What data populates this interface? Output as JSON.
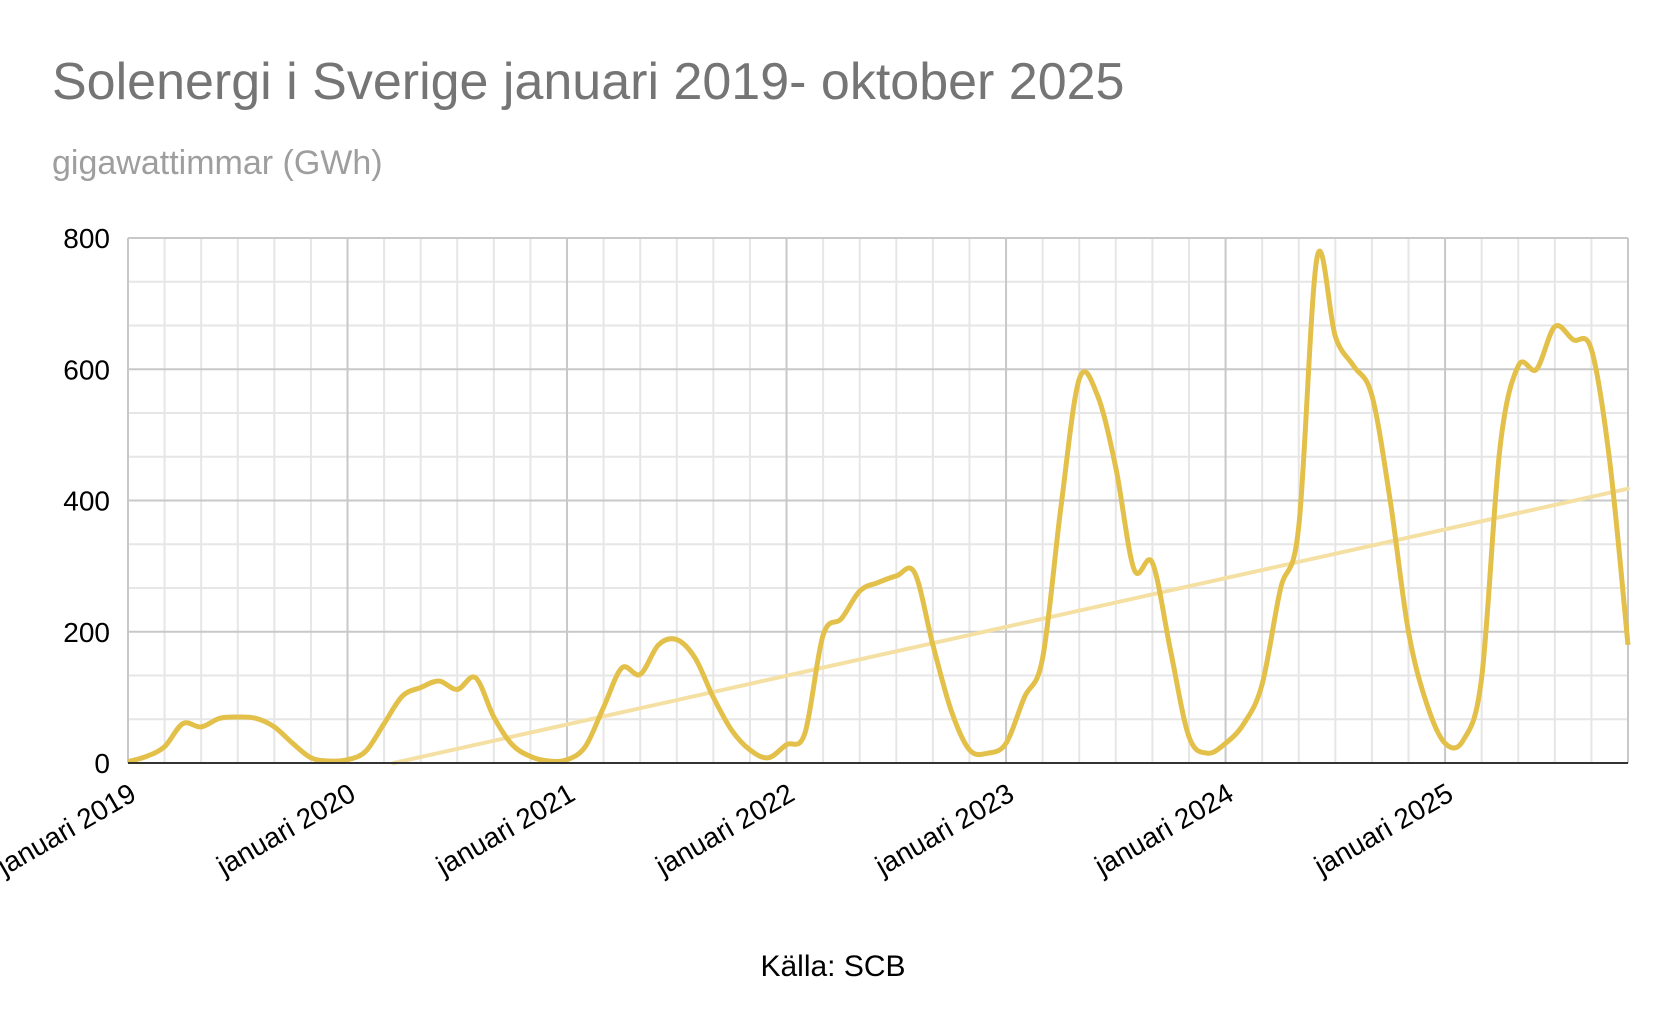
{
  "chart_data": {
    "type": "line",
    "title": "Solenergi i Sverige januari 2019- oktober 2025",
    "subtitle": "gigawattimmar (GWh)",
    "source": "Källa: SCB",
    "xlabel": "",
    "ylabel": "",
    "ylim": [
      0,
      800
    ],
    "y_ticks": [
      0,
      200,
      400,
      600,
      800
    ],
    "x_tick_labels": [
      "januari 2019",
      "januari 2020",
      "januari 2021",
      "januari 2022",
      "januari 2023",
      "januari 2024",
      "januari 2025"
    ],
    "grid": true,
    "colors": {
      "series": "#e3c04a",
      "trend": "#f5e0a3",
      "grid_minor": "#e6e6e6",
      "grid_major": "#c8c8c8",
      "axis": "#333333"
    },
    "series": [
      {
        "name": "Solenergi (GWh)",
        "start": "januari 2019",
        "frequency": "monthly",
        "values": [
          2,
          10,
          25,
          60,
          55,
          68,
          70,
          68,
          55,
          30,
          8,
          3,
          5,
          18,
          60,
          102,
          115,
          125,
          112,
          130,
          70,
          28,
          10,
          3,
          5,
          25,
          85,
          145,
          135,
          180,
          188,
          160,
          100,
          50,
          20,
          8,
          28,
          45,
          195,
          220,
          262,
          275,
          285,
          290,
          180,
          80,
          20,
          15,
          30,
          100,
          160,
          390,
          585,
          560,
          450,
          295,
          305,
          170,
          40,
          15,
          30,
          60,
          120,
          265,
          360,
          770,
          650,
          605,
          560,
          400,
          200,
          90,
          30,
          35,
          130,
          480,
          605,
          600,
          665,
          645,
          630,
          460,
          180
        ]
      },
      {
        "name": "Trend",
        "type": "linear",
        "values": [
          -90,
          418
        ]
      }
    ]
  }
}
